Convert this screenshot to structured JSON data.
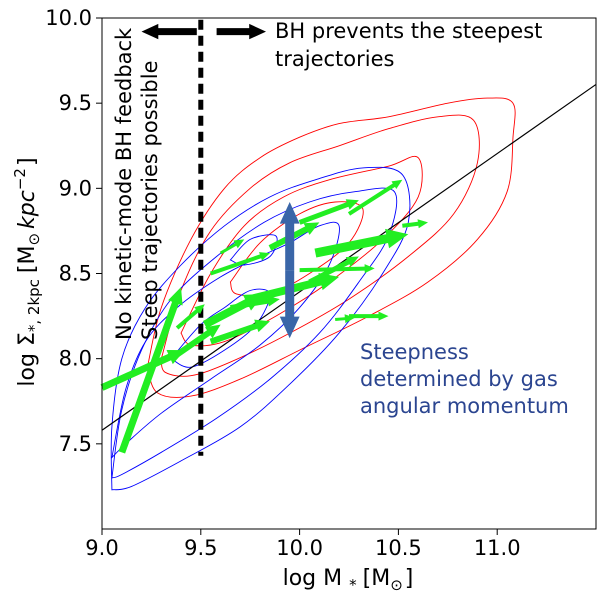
{
  "chart_data": {
    "type": "scatter",
    "xlabel": "log M",
    "xlabel_sub": "*",
    "xlabel_unit": "[M",
    "xlabel_unit_sub": "⊙",
    "xlabel_close": "]",
    "ylabel": "log Σ",
    "ylabel_sub": "*, 2kpc",
    "ylabel_unit": "[M",
    "ylabel_unit_sub": "⊙",
    "ylabel_unit2": "kpc",
    "ylabel_unit2_sup": "−2",
    "ylabel_close": "]",
    "xlim": [
      9.0,
      11.5
    ],
    "ylim": [
      7.0,
      10.0
    ],
    "xticks": [
      9.0,
      9.5,
      10.0,
      10.5,
      11.0
    ],
    "xtick_labels": [
      "9.0",
      "9.5",
      "10.0",
      "10.5",
      "11.0"
    ],
    "yticks": [
      7.5,
      8.0,
      8.5,
      9.0,
      9.5,
      10.0
    ],
    "ytick_labels": [
      "7.5",
      "8.0",
      "8.5",
      "9.0",
      "9.5",
      "10.0"
    ],
    "annotations": {
      "bh_prevents_line1": "BH prevents the steepest",
      "bh_prevents_line2": "trajectories",
      "no_kinetic_line1": "No kinetic-mode BH feedback",
      "no_kinetic_line2": "Steep trajectories possible",
      "steepness_line1": "Steepness",
      "steepness_line2": "determined by gas",
      "steepness_line3": "angular momentum"
    },
    "threshold_x": 9.5,
    "fit_line": {
      "x": [
        9.0,
        11.5
      ],
      "y": [
        7.58,
        9.61
      ]
    },
    "colors": {
      "red_contour": "#ff0000",
      "blue_contour": "#0000ff",
      "green_arrow": "#22ee22",
      "blue_arrow": "#3a66a8",
      "steepness_text": "#2b4590",
      "threshold": "#000000"
    },
    "contours_red": [
      [
        [
          9.23,
          7.95
        ],
        [
          9.3,
          8.3
        ],
        [
          9.45,
          8.7
        ],
        [
          9.62,
          9.0
        ],
        [
          9.8,
          9.18
        ],
        [
          10.0,
          9.3
        ],
        [
          10.2,
          9.38
        ],
        [
          10.45,
          9.42
        ],
        [
          10.75,
          9.5
        ],
        [
          10.95,
          9.53
        ],
        [
          11.08,
          9.5
        ],
        [
          11.08,
          9.3
        ],
        [
          11.05,
          8.98
        ],
        [
          10.9,
          8.7
        ],
        [
          10.65,
          8.45
        ],
        [
          10.35,
          8.25
        ],
        [
          10.0,
          8.05
        ],
        [
          9.7,
          7.88
        ],
        [
          9.45,
          7.78
        ],
        [
          9.28,
          7.8
        ],
        [
          9.23,
          7.95
        ]
      ],
      [
        [
          9.3,
          8.0
        ],
        [
          9.4,
          8.4
        ],
        [
          9.55,
          8.75
        ],
        [
          9.75,
          9.0
        ],
        [
          9.95,
          9.15
        ],
        [
          10.2,
          9.25
        ],
        [
          10.45,
          9.35
        ],
        [
          10.7,
          9.42
        ],
        [
          10.88,
          9.4
        ],
        [
          10.9,
          9.15
        ],
        [
          10.78,
          8.85
        ],
        [
          10.55,
          8.6
        ],
        [
          10.25,
          8.35
        ],
        [
          9.95,
          8.15
        ],
        [
          9.65,
          7.98
        ],
        [
          9.45,
          7.9
        ],
        [
          9.32,
          7.92
        ],
        [
          9.3,
          8.0
        ]
      ],
      [
        [
          9.4,
          8.15
        ],
        [
          9.55,
          8.5
        ],
        [
          9.72,
          8.78
        ],
        [
          9.92,
          8.95
        ],
        [
          10.15,
          9.05
        ],
        [
          10.45,
          9.13
        ],
        [
          10.6,
          9.18
        ],
        [
          10.6,
          8.95
        ],
        [
          10.42,
          8.7
        ],
        [
          10.15,
          8.45
        ],
        [
          9.88,
          8.25
        ],
        [
          9.62,
          8.1
        ],
        [
          9.45,
          8.08
        ],
        [
          9.4,
          8.15
        ]
      ],
      [
        [
          9.65,
          8.45
        ],
        [
          9.8,
          8.68
        ],
        [
          10.0,
          8.85
        ],
        [
          10.18,
          8.92
        ],
        [
          10.32,
          8.88
        ],
        [
          10.25,
          8.68
        ],
        [
          10.05,
          8.5
        ],
        [
          9.85,
          8.38
        ],
        [
          9.68,
          8.38
        ],
        [
          9.65,
          8.45
        ]
      ]
    ],
    "contours_blue": [
      [
        [
          9.05,
          7.23
        ],
        [
          9.05,
          7.6
        ],
        [
          9.1,
          8.0
        ],
        [
          9.22,
          8.3
        ],
        [
          9.4,
          8.55
        ],
        [
          9.62,
          8.78
        ],
        [
          9.85,
          8.95
        ],
        [
          10.08,
          9.05
        ],
        [
          10.32,
          9.12
        ],
        [
          10.52,
          9.08
        ],
        [
          10.55,
          8.8
        ],
        [
          10.42,
          8.5
        ],
        [
          10.2,
          8.15
        ],
        [
          9.95,
          7.85
        ],
        [
          9.7,
          7.6
        ],
        [
          9.4,
          7.4
        ],
        [
          9.15,
          7.25
        ],
        [
          9.05,
          7.23
        ]
      ],
      [
        [
          9.05,
          7.3
        ],
        [
          9.1,
          7.7
        ],
        [
          9.2,
          8.05
        ],
        [
          9.35,
          8.35
        ],
        [
          9.58,
          8.6
        ],
        [
          9.82,
          8.8
        ],
        [
          10.05,
          8.92
        ],
        [
          10.28,
          8.98
        ],
        [
          10.48,
          8.98
        ],
        [
          10.45,
          8.72
        ],
        [
          10.3,
          8.45
        ],
        [
          10.1,
          8.15
        ],
        [
          9.85,
          7.88
        ],
        [
          9.58,
          7.65
        ],
        [
          9.3,
          7.45
        ],
        [
          9.1,
          7.32
        ],
        [
          9.05,
          7.3
        ]
      ],
      [
        [
          9.05,
          7.42
        ],
        [
          9.12,
          7.82
        ],
        [
          9.22,
          8.1
        ],
        [
          9.38,
          8.3
        ],
        [
          9.6,
          8.48
        ],
        [
          9.8,
          8.6
        ],
        [
          9.95,
          8.68
        ],
        [
          10.1,
          8.78
        ],
        [
          10.2,
          8.78
        ],
        [
          10.15,
          8.55
        ],
        [
          10.0,
          8.3
        ],
        [
          9.8,
          8.08
        ],
        [
          9.55,
          7.88
        ],
        [
          9.3,
          7.68
        ],
        [
          9.12,
          7.5
        ],
        [
          9.05,
          7.42
        ]
      ],
      [
        [
          9.35,
          8.0
        ],
        [
          9.5,
          8.2
        ],
        [
          9.62,
          8.3
        ],
        [
          9.75,
          8.4
        ],
        [
          9.85,
          8.38
        ],
        [
          9.78,
          8.2
        ],
        [
          9.62,
          8.05
        ],
        [
          9.45,
          7.95
        ],
        [
          9.35,
          8.0
        ]
      ],
      [
        [
          9.65,
          8.58
        ],
        [
          9.75,
          8.7
        ],
        [
          9.88,
          8.72
        ],
        [
          9.85,
          8.6
        ],
        [
          9.72,
          8.55
        ],
        [
          9.65,
          8.58
        ]
      ]
    ],
    "green_arrows": [
      {
        "from": [
          9.1,
          7.45
        ],
        "to": [
          9.4,
          8.42
        ],
        "width": 7
      },
      {
        "from": [
          9.0,
          7.83
        ],
        "to": [
          9.42,
          8.05
        ],
        "width": 7
      },
      {
        "from": [
          9.35,
          8.0
        ],
        "to": [
          9.6,
          8.2
        ],
        "width": 6
      },
      {
        "from": [
          9.38,
          8.18
        ],
        "to": [
          9.52,
          8.32
        ],
        "width": 4
      },
      {
        "from": [
          9.52,
          8.2
        ],
        "to": [
          9.82,
          8.38
        ],
        "width": 8
      },
      {
        "from": [
          9.55,
          8.1
        ],
        "to": [
          9.85,
          8.22
        ],
        "width": 6
      },
      {
        "from": [
          9.65,
          8.3
        ],
        "to": [
          9.9,
          8.35
        ],
        "width": 5
      },
      {
        "from": [
          9.75,
          8.35
        ],
        "to": [
          10.2,
          8.48
        ],
        "width": 8
      },
      {
        "from": [
          10.0,
          8.52
        ],
        "to": [
          10.38,
          8.53
        ],
        "width": 4
      },
      {
        "from": [
          10.05,
          8.45
        ],
        "to": [
          10.3,
          8.6
        ],
        "width": 5
      },
      {
        "from": [
          10.08,
          8.62
        ],
        "to": [
          10.55,
          8.73
        ],
        "width": 9
      },
      {
        "from": [
          10.52,
          8.78
        ],
        "to": [
          10.65,
          8.8
        ],
        "width": 4
      },
      {
        "from": [
          9.55,
          8.5
        ],
        "to": [
          9.85,
          8.62
        ],
        "width": 4
      },
      {
        "from": [
          9.6,
          8.62
        ],
        "to": [
          9.72,
          8.7
        ],
        "width": 3
      },
      {
        "from": [
          9.85,
          8.65
        ],
        "to": [
          10.1,
          8.8
        ],
        "width": 6
      },
      {
        "from": [
          10.0,
          8.8
        ],
        "to": [
          10.3,
          8.93
        ],
        "width": 5
      },
      {
        "from": [
          10.25,
          8.85
        ],
        "to": [
          10.52,
          9.05
        ],
        "width": 4
      },
      {
        "from": [
          10.25,
          8.25
        ],
        "to": [
          10.45,
          8.25
        ],
        "width": 4
      },
      {
        "from": [
          10.18,
          8.23
        ],
        "to": [
          10.28,
          8.24
        ],
        "width": 3
      }
    ],
    "blue_double_arrow": {
      "x": 9.95,
      "y_top": 8.92,
      "y_bottom": 8.12
    },
    "bh_arrow_left": {
      "from": 9.48,
      "to": 9.2,
      "y": 9.92
    },
    "bh_arrow_right": {
      "from": 9.58,
      "to": 9.83,
      "y": 9.92
    }
  }
}
